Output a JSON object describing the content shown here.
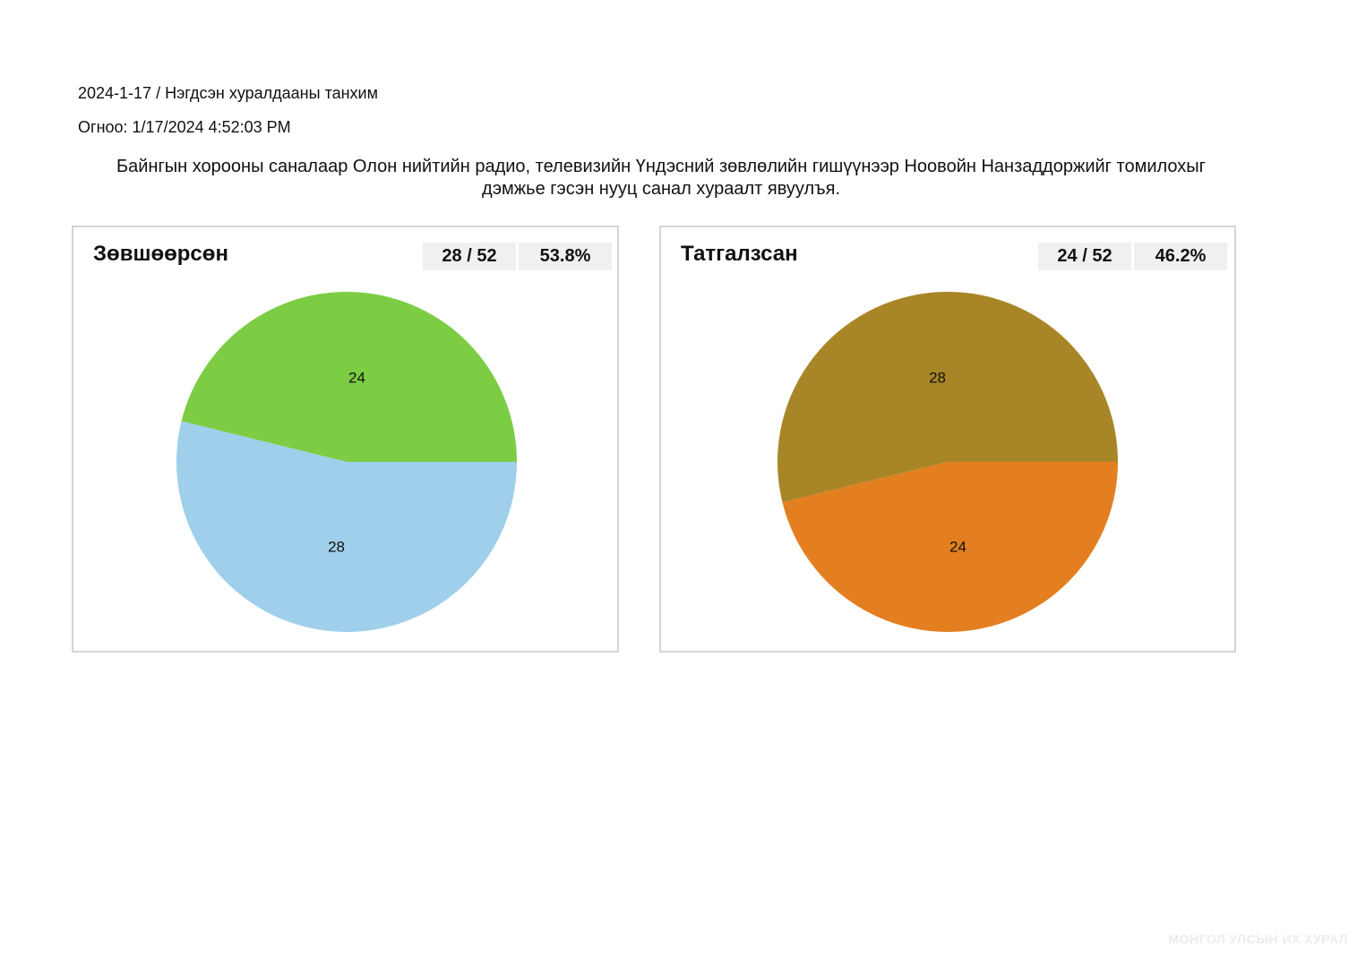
{
  "header": {
    "session": "2024-1-17 / Нэгдсэн хуралдааны танхим",
    "date_line": "Огноо: 1/17/2024 4:52:03 PM",
    "description": "Байнгын хорооны саналаар Олон нийтийн радио, телевизийн Үндэсний зөвлөлийн гишүүнээр Ноовойн Нанзаддоржийг томилохыг дэмжье гэсэн нууц санал хураалт явуулъя."
  },
  "panels": [
    {
      "title": "Зөвшөөрсөн",
      "count": "28 / 52",
      "percent": "53.8%"
    },
    {
      "title": "Татгалзсан",
      "count": "24 / 52",
      "percent": "46.2%"
    }
  ],
  "chart_data": [
    {
      "type": "pie",
      "title": "Зөвшөөрсөн",
      "categories": [
        "",
        ""
      ],
      "values": [
        24,
        28
      ],
      "data_labels": [
        "24",
        "28"
      ],
      "colors": [
        "#7ccd44",
        "#9fcfea"
      ]
    },
    {
      "type": "pie",
      "title": "Татгалзсан",
      "categories": [
        "",
        ""
      ],
      "values": [
        28,
        24
      ],
      "data_labels": [
        "28",
        "24"
      ],
      "colors": [
        "#a88627",
        "#e37f20"
      ]
    }
  ],
  "watermark": "МОНГОЛ УЛСЫН ИХ ХУРАЛ"
}
